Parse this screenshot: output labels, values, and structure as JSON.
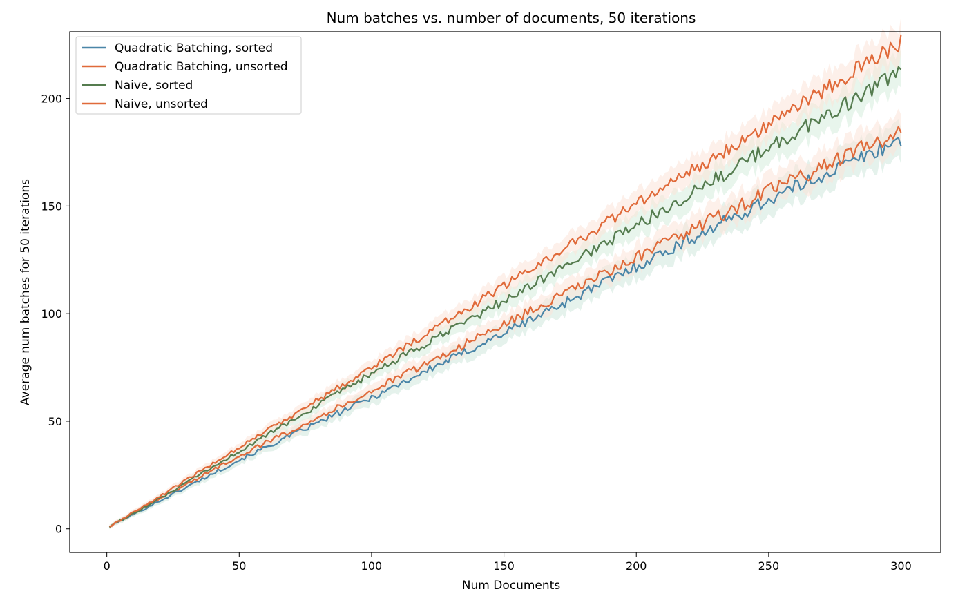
{
  "chart_data": {
    "type": "line",
    "title": "Num batches vs. number of documents, 50 iterations",
    "xlabel": "Num Documents",
    "ylabel": "Average num batches for 50 iterations",
    "xlim": [
      -14,
      315
    ],
    "ylim": [
      -11,
      231
    ],
    "xticks": [
      0,
      50,
      100,
      150,
      200,
      250,
      300
    ],
    "yticks": [
      0,
      50,
      100,
      150,
      200
    ],
    "grid": false,
    "legend_position": "top-left",
    "x_start": 1,
    "x_end": 300,
    "series": [
      {
        "name": "Quadratic Batching, sorted",
        "color": "#4a86a8",
        "band_color": "#cfe8dc",
        "x": [
          1,
          20,
          50,
          100,
          150,
          200,
          250,
          300
        ],
        "y": [
          1,
          13,
          32,
          61,
          91,
          122,
          153,
          181
        ]
      },
      {
        "name": "Quadratic Batching, unsorted",
        "color": "#e06a3a",
        "band_color": "#fbe3d9",
        "x": [
          1,
          20,
          50,
          100,
          150,
          200,
          250,
          300
        ],
        "y": [
          1,
          14,
          34,
          64,
          95,
          126,
          157,
          185
        ]
      },
      {
        "name": "Naive, sorted",
        "color": "#557c4f",
        "band_color": "#d6ecdd",
        "x": [
          1,
          20,
          50,
          100,
          150,
          200,
          250,
          300
        ],
        "y": [
          1,
          14,
          36,
          72,
          106,
          141,
          177,
          212
        ]
      },
      {
        "name": "Naive, unsorted",
        "color": "#e06a3a",
        "band_color": "#fbe3d9",
        "x": [
          1,
          20,
          50,
          100,
          150,
          200,
          250,
          300
        ],
        "y": [
          1,
          15,
          38,
          75,
          113,
          151,
          188,
          226
        ]
      }
    ]
  }
}
